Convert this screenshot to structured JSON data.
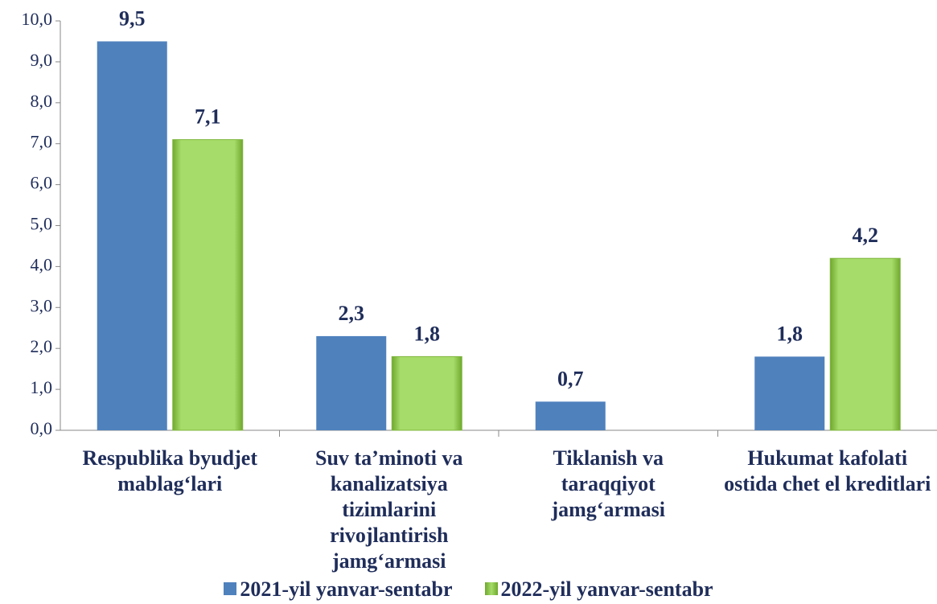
{
  "chart_data": {
    "type": "bar",
    "categories": [
      "Respublika byudjet mablag‘lari",
      "Suv ta’minoti va kanalizatsiya tizimlarini rivojlantirish jamg‘armasi",
      "Tiklanish  va taraqqiyot jamg‘armasi",
      "Hukumat kafolati ostida chet el kreditlari"
    ],
    "series": [
      {
        "name": "2021-yil yanvar-sentabr",
        "color": "#4f81bd",
        "values": [
          9.5,
          2.3,
          0.7,
          1.8
        ],
        "value_labels": [
          "9,5",
          "2,3",
          "0,7",
          "1,8"
        ]
      },
      {
        "name": "2022-yil yanvar-sentabr",
        "color": "#92d050",
        "values": [
          7.1,
          1.8,
          null,
          4.2
        ],
        "value_labels": [
          "7,1",
          "1,8",
          null,
          "4,2"
        ]
      }
    ],
    "ylim": [
      0,
      10
    ],
    "yticks": [
      {
        "value": 0,
        "label": "0,0"
      },
      {
        "value": 1,
        "label": "1,0"
      },
      {
        "value": 2,
        "label": "2,0"
      },
      {
        "value": 3,
        "label": "3,0"
      },
      {
        "value": 4,
        "label": "4,0"
      },
      {
        "value": 5,
        "label": "5,0"
      },
      {
        "value": 6,
        "label": "6,0"
      },
      {
        "value": 7,
        "label": "7,0"
      },
      {
        "value": 8,
        "label": "8,0"
      },
      {
        "value": 9,
        "label": "9,0"
      },
      {
        "value": 10,
        "label": "10,0"
      }
    ],
    "grid": false
  }
}
